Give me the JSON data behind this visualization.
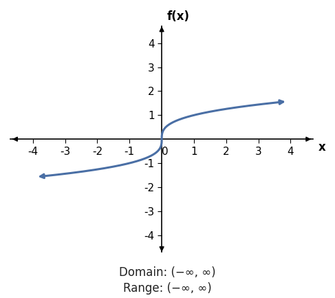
{
  "title": "f(x)",
  "xlabel": "x",
  "xlim": [
    -4.7,
    4.7
  ],
  "ylim": [
    -4.7,
    4.7
  ],
  "xticks": [
    -4,
    -3,
    -2,
    -1,
    0,
    1,
    2,
    3,
    4
  ],
  "yticks": [
    -4,
    -3,
    -2,
    -1,
    1,
    2,
    3,
    4
  ],
  "curve_color": "#4a6fa5",
  "curve_linewidth": 2.2,
  "x_start": -3.75,
  "x_end": 3.75,
  "domain_text": "Domain: (−∞, ∞)",
  "range_text": "Range: (−∞, ∞)",
  "background_color": "#ffffff",
  "axis_color": "#000000",
  "tick_label_fontsize": 11,
  "annotation_fontsize": 12
}
